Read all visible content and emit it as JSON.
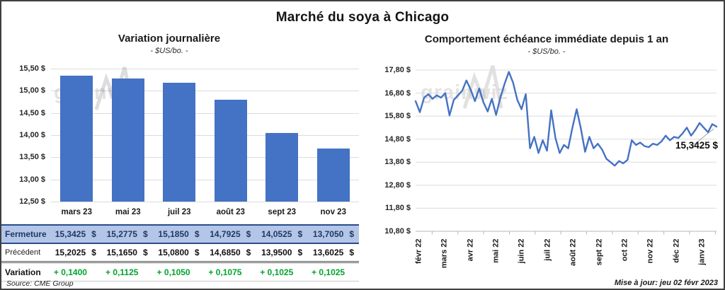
{
  "title": "Marché du soya à Chicago",
  "watermark": "grainwiz",
  "colors": {
    "bar": "#4472C4",
    "line": "#4472C4",
    "gridline": "#dcdcdc",
    "axis": "#b7b7b7",
    "fermeture_bg": "#B4C6E7",
    "fermeture_text": "#1F3864",
    "variation_text": "#00A32E"
  },
  "chart_data": [
    {
      "type": "bar",
      "title": "Variation  journalière",
      "subtitle": "- $US/bo. -",
      "categories": [
        "mars 23",
        "mai 23",
        "juil 23",
        "août 23",
        "sept 23",
        "nov 23"
      ],
      "values": [
        15.3425,
        15.2775,
        15.185,
        14.7925,
        14.0525,
        13.705
      ],
      "xlabel": "",
      "ylabel": "$US/bo.",
      "ylim": [
        12.5,
        15.5
      ],
      "ytick_step": 0.5,
      "ytick_labels": [
        "15,50 $",
        "15,00 $",
        "14,50 $",
        "14,00 $",
        "13,50 $",
        "13,00 $",
        "12,50 $"
      ],
      "grid": true,
      "legend": "none"
    },
    {
      "type": "line",
      "title": "Comportement  échéance immédiate depuis 1 an",
      "subtitle": "- $US/bo. -",
      "x_labels": [
        "févr 22",
        "mars 22",
        "avr 22",
        "mai 22",
        "juin 22",
        "juil 22",
        "août 22",
        "sept 22",
        "oct 22",
        "nov 22",
        "déc 22",
        "janv 23"
      ],
      "ylim": [
        10.8,
        17.8
      ],
      "ytick_step": 1.0,
      "ytick_labels": [
        "17,80 $",
        "16,80 $",
        "15,80 $",
        "14,80 $",
        "13,80 $",
        "12,80 $",
        "11,80 $",
        "10,80 $"
      ],
      "grid": true,
      "legend": "none",
      "last_point_label": "15,3425 $",
      "values": [
        16.45,
        15.97,
        16.6,
        16.75,
        16.55,
        16.7,
        16.6,
        16.8,
        15.83,
        16.5,
        16.7,
        16.9,
        17.35,
        16.95,
        16.45,
        17.0,
        16.4,
        16.0,
        16.55,
        15.85,
        16.6,
        17.2,
        17.72,
        17.25,
        16.5,
        16.1,
        16.75,
        14.4,
        14.9,
        14.2,
        14.75,
        14.3,
        16.05,
        14.85,
        14.2,
        14.55,
        14.4,
        15.3,
        16.1,
        15.25,
        14.25,
        14.9,
        14.4,
        14.6,
        14.35,
        13.95,
        13.8,
        13.65,
        13.85,
        13.75,
        13.9,
        14.75,
        14.55,
        14.65,
        14.5,
        14.45,
        14.6,
        14.55,
        14.7,
        14.95,
        14.75,
        14.9,
        14.85,
        15.05,
        15.3,
        14.95,
        15.2,
        15.5,
        15.3,
        15.1,
        15.45,
        15.3425
      ]
    }
  ],
  "table": {
    "columns": [
      "mars 23",
      "mai 23",
      "juil 23",
      "août 23",
      "sept 23",
      "nov 23"
    ],
    "currency": "$",
    "rows": [
      {
        "label": "Fermeture",
        "style": "fermeture",
        "show_currency": true,
        "values": [
          "15,3425",
          "15,2775",
          "15,1850",
          "14,7925",
          "14,0525",
          "13,7050"
        ]
      },
      {
        "label": "Précédent",
        "style": "precedent",
        "show_currency": true,
        "values": [
          "15,2025",
          "15,1650",
          "15,0800",
          "14,6850",
          "13,9500",
          "13,6025"
        ]
      },
      {
        "label": "Variation",
        "style": "variation",
        "show_currency": false,
        "values": [
          "+ 0,1400",
          "+ 0,1125",
          "+ 0,1050",
          "+ 0,1075",
          "+ 0,1025",
          "+ 0,1025"
        ]
      }
    ]
  },
  "footer": {
    "source": "Source: CME Group",
    "updated": "Mise à jour: jeu 02 févr 2023"
  }
}
